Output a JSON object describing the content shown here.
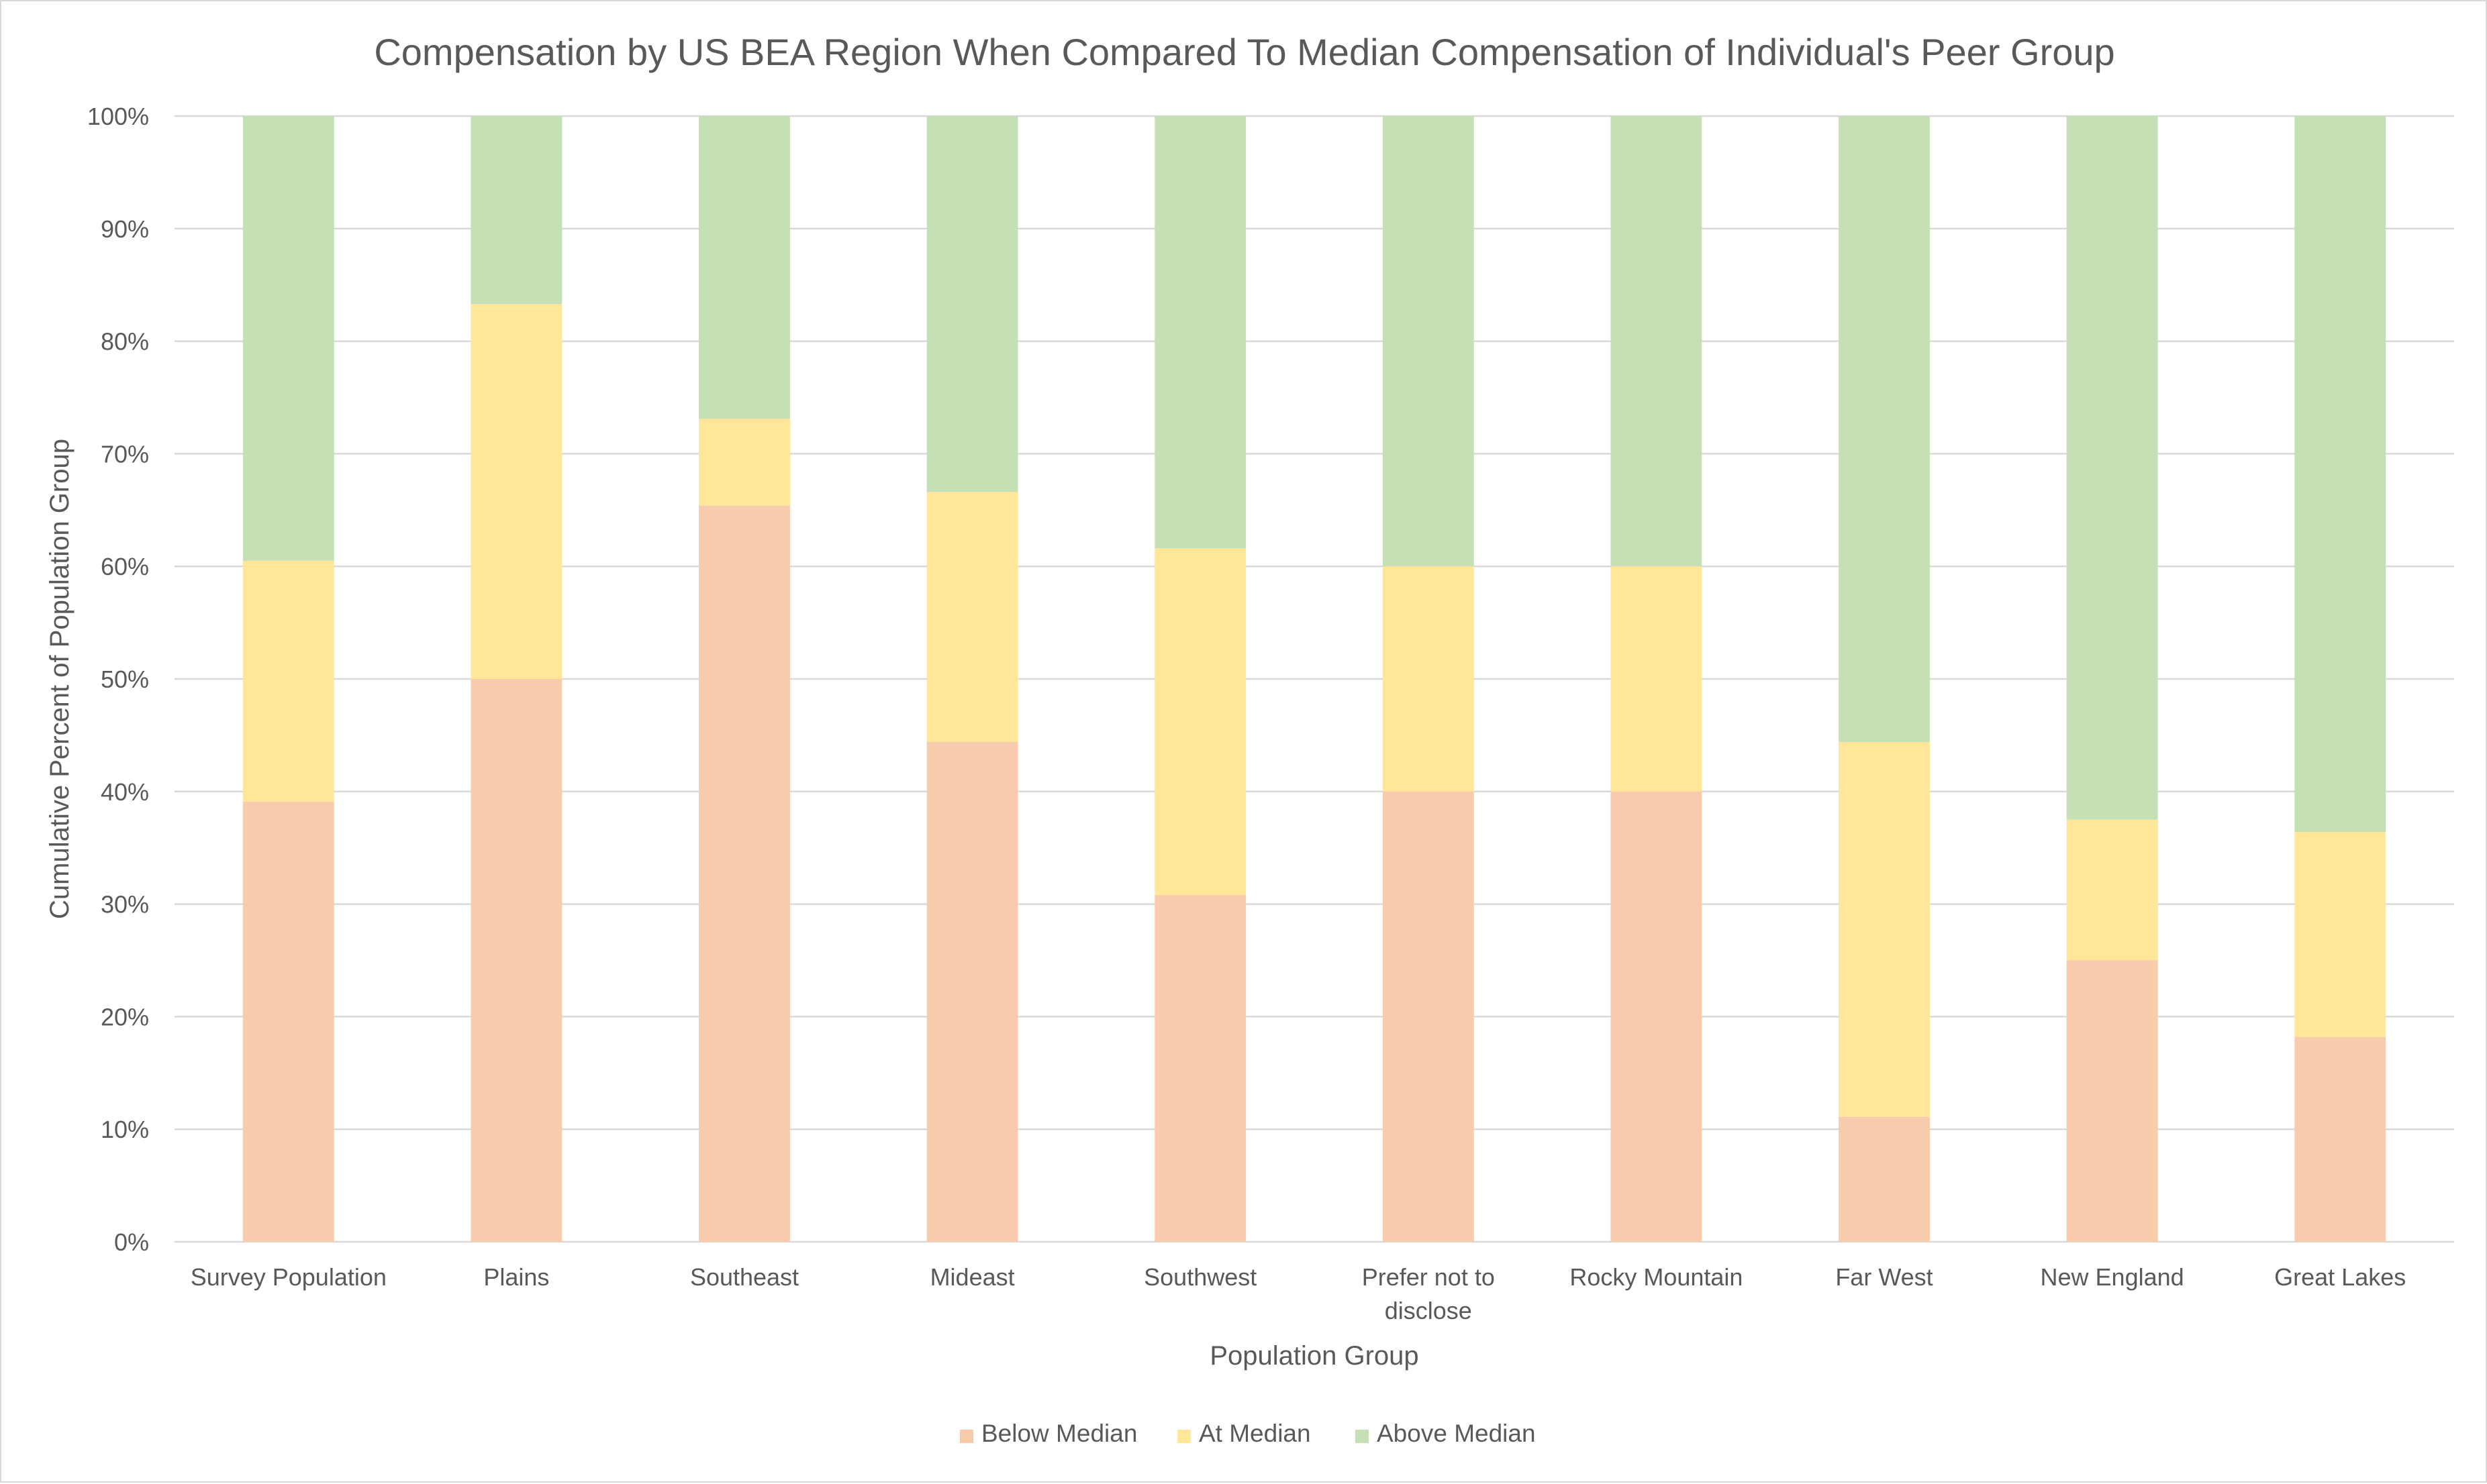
{
  "chart_data": {
    "type": "bar",
    "stacked": true,
    "title": "Compensation by US BEA Region When Compared To Median Compensation of Individual's Peer Group",
    "xlabel": "Population Group",
    "ylabel": "Cumulative Percent of Population Group",
    "ylim": [
      0,
      100
    ],
    "yticks": [
      "0%",
      "10%",
      "20%",
      "30%",
      "40%",
      "50%",
      "60%",
      "70%",
      "80%",
      "90%",
      "100%"
    ],
    "grid": true,
    "legend_position": "bottom",
    "categories": [
      [
        "Survey Population"
      ],
      [
        "Plains"
      ],
      [
        "Southeast"
      ],
      [
        "Mideast"
      ],
      [
        "Southwest"
      ],
      [
        "Prefer not to",
        "disclose"
      ],
      [
        "Rocky Mountain"
      ],
      [
        "Far West"
      ],
      [
        "New England"
      ],
      [
        "Great Lakes"
      ]
    ],
    "series": [
      {
        "name": "Below Median",
        "color": "#f8cbad",
        "values": [
          39.1,
          50.0,
          65.4,
          44.4,
          30.8,
          40.0,
          40.0,
          11.1,
          25.0,
          18.2
        ]
      },
      {
        "name": "At Median",
        "color": "#ffe699",
        "values": [
          21.4,
          33.3,
          7.7,
          22.2,
          30.8,
          20.0,
          20.0,
          33.3,
          12.5,
          18.2
        ]
      },
      {
        "name": "Above Median",
        "color": "#c5e0b4",
        "values": [
          39.5,
          16.7,
          26.9,
          33.4,
          38.4,
          40.0,
          40.0,
          55.6,
          62.5,
          63.6
        ]
      }
    ]
  }
}
